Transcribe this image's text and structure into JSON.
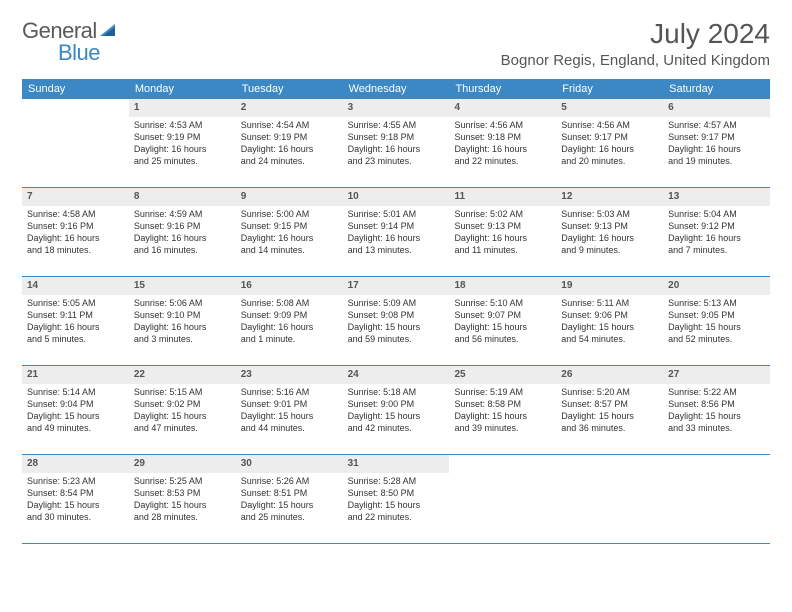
{
  "logo": {
    "general": "General",
    "blue": "Blue"
  },
  "title": "July 2024",
  "location": "Bognor Regis, England, United Kingdom",
  "colors": {
    "header_bg": "#3b88c4",
    "header_text": "#ffffff",
    "daynum_bg": "#ededed",
    "border": "#3b88c4",
    "text": "#333333",
    "title_text": "#555555"
  },
  "day_headers": [
    "Sunday",
    "Monday",
    "Tuesday",
    "Wednesday",
    "Thursday",
    "Friday",
    "Saturday"
  ],
  "weeks": [
    [
      {
        "n": "",
        "sr": "",
        "ss": "",
        "dl1": "",
        "dl2": "",
        "empty": true
      },
      {
        "n": "1",
        "sr": "Sunrise: 4:53 AM",
        "ss": "Sunset: 9:19 PM",
        "dl1": "Daylight: 16 hours",
        "dl2": "and 25 minutes."
      },
      {
        "n": "2",
        "sr": "Sunrise: 4:54 AM",
        "ss": "Sunset: 9:19 PM",
        "dl1": "Daylight: 16 hours",
        "dl2": "and 24 minutes."
      },
      {
        "n": "3",
        "sr": "Sunrise: 4:55 AM",
        "ss": "Sunset: 9:18 PM",
        "dl1": "Daylight: 16 hours",
        "dl2": "and 23 minutes."
      },
      {
        "n": "4",
        "sr": "Sunrise: 4:56 AM",
        "ss": "Sunset: 9:18 PM",
        "dl1": "Daylight: 16 hours",
        "dl2": "and 22 minutes."
      },
      {
        "n": "5",
        "sr": "Sunrise: 4:56 AM",
        "ss": "Sunset: 9:17 PM",
        "dl1": "Daylight: 16 hours",
        "dl2": "and 20 minutes."
      },
      {
        "n": "6",
        "sr": "Sunrise: 4:57 AM",
        "ss": "Sunset: 9:17 PM",
        "dl1": "Daylight: 16 hours",
        "dl2": "and 19 minutes."
      }
    ],
    [
      {
        "n": "7",
        "sr": "Sunrise: 4:58 AM",
        "ss": "Sunset: 9:16 PM",
        "dl1": "Daylight: 16 hours",
        "dl2": "and 18 minutes."
      },
      {
        "n": "8",
        "sr": "Sunrise: 4:59 AM",
        "ss": "Sunset: 9:16 PM",
        "dl1": "Daylight: 16 hours",
        "dl2": "and 16 minutes."
      },
      {
        "n": "9",
        "sr": "Sunrise: 5:00 AM",
        "ss": "Sunset: 9:15 PM",
        "dl1": "Daylight: 16 hours",
        "dl2": "and 14 minutes."
      },
      {
        "n": "10",
        "sr": "Sunrise: 5:01 AM",
        "ss": "Sunset: 9:14 PM",
        "dl1": "Daylight: 16 hours",
        "dl2": "and 13 minutes."
      },
      {
        "n": "11",
        "sr": "Sunrise: 5:02 AM",
        "ss": "Sunset: 9:13 PM",
        "dl1": "Daylight: 16 hours",
        "dl2": "and 11 minutes."
      },
      {
        "n": "12",
        "sr": "Sunrise: 5:03 AM",
        "ss": "Sunset: 9:13 PM",
        "dl1": "Daylight: 16 hours",
        "dl2": "and 9 minutes."
      },
      {
        "n": "13",
        "sr": "Sunrise: 5:04 AM",
        "ss": "Sunset: 9:12 PM",
        "dl1": "Daylight: 16 hours",
        "dl2": "and 7 minutes."
      }
    ],
    [
      {
        "n": "14",
        "sr": "Sunrise: 5:05 AM",
        "ss": "Sunset: 9:11 PM",
        "dl1": "Daylight: 16 hours",
        "dl2": "and 5 minutes."
      },
      {
        "n": "15",
        "sr": "Sunrise: 5:06 AM",
        "ss": "Sunset: 9:10 PM",
        "dl1": "Daylight: 16 hours",
        "dl2": "and 3 minutes."
      },
      {
        "n": "16",
        "sr": "Sunrise: 5:08 AM",
        "ss": "Sunset: 9:09 PM",
        "dl1": "Daylight: 16 hours",
        "dl2": "and 1 minute."
      },
      {
        "n": "17",
        "sr": "Sunrise: 5:09 AM",
        "ss": "Sunset: 9:08 PM",
        "dl1": "Daylight: 15 hours",
        "dl2": "and 59 minutes."
      },
      {
        "n": "18",
        "sr": "Sunrise: 5:10 AM",
        "ss": "Sunset: 9:07 PM",
        "dl1": "Daylight: 15 hours",
        "dl2": "and 56 minutes."
      },
      {
        "n": "19",
        "sr": "Sunrise: 5:11 AM",
        "ss": "Sunset: 9:06 PM",
        "dl1": "Daylight: 15 hours",
        "dl2": "and 54 minutes."
      },
      {
        "n": "20",
        "sr": "Sunrise: 5:13 AM",
        "ss": "Sunset: 9:05 PM",
        "dl1": "Daylight: 15 hours",
        "dl2": "and 52 minutes."
      }
    ],
    [
      {
        "n": "21",
        "sr": "Sunrise: 5:14 AM",
        "ss": "Sunset: 9:04 PM",
        "dl1": "Daylight: 15 hours",
        "dl2": "and 49 minutes."
      },
      {
        "n": "22",
        "sr": "Sunrise: 5:15 AM",
        "ss": "Sunset: 9:02 PM",
        "dl1": "Daylight: 15 hours",
        "dl2": "and 47 minutes."
      },
      {
        "n": "23",
        "sr": "Sunrise: 5:16 AM",
        "ss": "Sunset: 9:01 PM",
        "dl1": "Daylight: 15 hours",
        "dl2": "and 44 minutes."
      },
      {
        "n": "24",
        "sr": "Sunrise: 5:18 AM",
        "ss": "Sunset: 9:00 PM",
        "dl1": "Daylight: 15 hours",
        "dl2": "and 42 minutes."
      },
      {
        "n": "25",
        "sr": "Sunrise: 5:19 AM",
        "ss": "Sunset: 8:58 PM",
        "dl1": "Daylight: 15 hours",
        "dl2": "and 39 minutes."
      },
      {
        "n": "26",
        "sr": "Sunrise: 5:20 AM",
        "ss": "Sunset: 8:57 PM",
        "dl1": "Daylight: 15 hours",
        "dl2": "and 36 minutes."
      },
      {
        "n": "27",
        "sr": "Sunrise: 5:22 AM",
        "ss": "Sunset: 8:56 PM",
        "dl1": "Daylight: 15 hours",
        "dl2": "and 33 minutes."
      }
    ],
    [
      {
        "n": "28",
        "sr": "Sunrise: 5:23 AM",
        "ss": "Sunset: 8:54 PM",
        "dl1": "Daylight: 15 hours",
        "dl2": "and 30 minutes."
      },
      {
        "n": "29",
        "sr": "Sunrise: 5:25 AM",
        "ss": "Sunset: 8:53 PM",
        "dl1": "Daylight: 15 hours",
        "dl2": "and 28 minutes."
      },
      {
        "n": "30",
        "sr": "Sunrise: 5:26 AM",
        "ss": "Sunset: 8:51 PM",
        "dl1": "Daylight: 15 hours",
        "dl2": "and 25 minutes."
      },
      {
        "n": "31",
        "sr": "Sunrise: 5:28 AM",
        "ss": "Sunset: 8:50 PM",
        "dl1": "Daylight: 15 hours",
        "dl2": "and 22 minutes."
      },
      {
        "n": "",
        "sr": "",
        "ss": "",
        "dl1": "",
        "dl2": "",
        "empty": true
      },
      {
        "n": "",
        "sr": "",
        "ss": "",
        "dl1": "",
        "dl2": "",
        "empty": true
      },
      {
        "n": "",
        "sr": "",
        "ss": "",
        "dl1": "",
        "dl2": "",
        "empty": true
      }
    ]
  ]
}
